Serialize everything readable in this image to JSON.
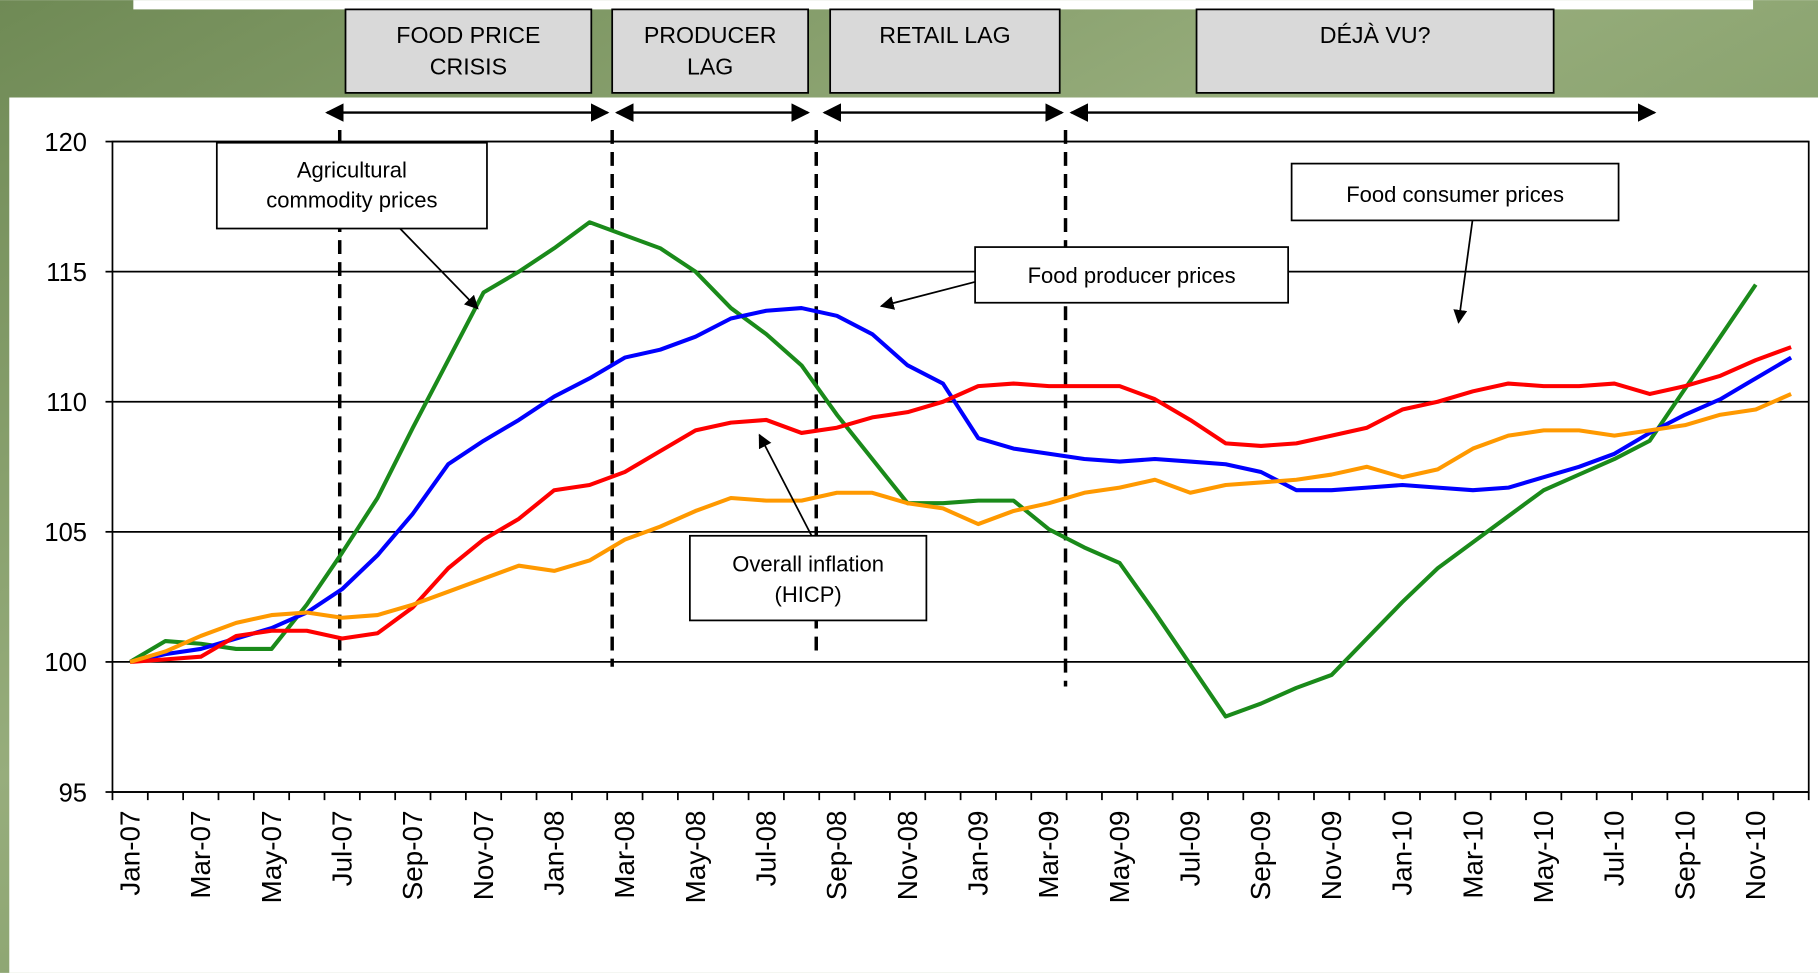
{
  "chart_data": {
    "type": "line",
    "categories": [
      "Jan-07",
      null,
      "Mar-07",
      null,
      "May-07",
      null,
      "Jul-07",
      null,
      "Sep-07",
      null,
      "Nov-07",
      null,
      "Jan-08",
      null,
      "Mar-08",
      null,
      "May-08",
      null,
      "Jul-08",
      null,
      "Sep-08",
      null,
      "Nov-08",
      null,
      "Jan-09",
      null,
      "Mar-09",
      null,
      "May-09",
      null,
      "Jul-09",
      null,
      "Sep-09",
      null,
      "Nov-09",
      null,
      "Jan-10",
      null,
      "Mar-10",
      null,
      "May-10",
      null,
      "Jul-10",
      null,
      "Sep-10",
      null,
      "Nov-10",
      null
    ],
    "series": [
      {
        "color": "#1a8a1a",
        "values": [
          100,
          100.8,
          100.7,
          100.5,
          100.5,
          102.2,
          104.2,
          106.3,
          109,
          111.6,
          114.2,
          115,
          115.9,
          116.9,
          116.4,
          115.9,
          115,
          113.6,
          112.6,
          111.4,
          109.5,
          107.8,
          106.1,
          106.1,
          106.2,
          106.2,
          105.1,
          104.4,
          103.8,
          101.9,
          99.9,
          97.9,
          98.4,
          99,
          99.5,
          100.9,
          102.3,
          103.6,
          104.6,
          105.6,
          106.6,
          107.2,
          107.8,
          108.5,
          110.5,
          112.5,
          114.5,
          null
        ]
      },
      {
        "color": "#0000ff",
        "values": [
          100,
          100.3,
          100.5,
          100.9,
          101.3,
          101.9,
          102.8,
          104.1,
          105.7,
          107.6,
          108.5,
          109.3,
          110.2,
          110.9,
          111.7,
          112,
          112.5,
          113.2,
          113.5,
          113.6,
          113.3,
          112.6,
          111.4,
          110.7,
          108.6,
          108.2,
          108,
          107.8,
          107.7,
          107.8,
          107.7,
          107.6,
          107.3,
          106.6,
          106.6,
          106.7,
          106.8,
          106.7,
          106.6,
          106.7,
          107.1,
          107.5,
          108,
          108.8,
          109.5,
          110.1,
          110.9,
          111.7
        ]
      },
      {
        "color": "#ff0000",
        "values": [
          100,
          100.1,
          100.2,
          101,
          101.2,
          101.2,
          100.9,
          101.1,
          102.1,
          103.6,
          104.7,
          105.5,
          106.6,
          106.8,
          107.3,
          108.1,
          108.9,
          109.2,
          109.3,
          108.8,
          109,
          109.4,
          109.6,
          110,
          110.6,
          110.7,
          110.6,
          110.6,
          110.6,
          110.1,
          109.3,
          108.4,
          108.3,
          108.4,
          108.7,
          109,
          109.7,
          110,
          110.4,
          110.7,
          110.6,
          110.6,
          110.7,
          110.3,
          110.6,
          111,
          111.6,
          112.1
        ]
      },
      {
        "color": "#ff9900",
        "values": [
          100,
          100.4,
          101,
          101.5,
          101.8,
          101.9,
          101.7,
          101.8,
          102.2,
          102.7,
          103.2,
          103.7,
          103.5,
          103.9,
          104.7,
          105.2,
          105.8,
          106.3,
          106.2,
          106.2,
          106.5,
          106.5,
          106.1,
          105.9,
          105.3,
          105.8,
          106.1,
          106.5,
          106.7,
          107,
          106.5,
          106.8,
          106.9,
          107,
          107.2,
          107.5,
          107.1,
          107.4,
          108.2,
          108.7,
          108.9,
          108.9,
          108.7,
          108.9,
          109.1,
          109.5,
          109.7,
          110.3
        ]
      }
    ],
    "ylim": [
      95,
      120
    ],
    "yticks": [
      95,
      100,
      105,
      110,
      115,
      120
    ],
    "grid": true,
    "annotations": {
      "periods": [
        [
          "FOOD PRICE",
          "CRISIS"
        ],
        [
          "PRODUCER",
          "LAG"
        ],
        [
          "RETAIL LAG"
        ],
        [
          "DÉJÀ VU?"
        ]
      ],
      "callouts": [
        [
          "Agricultural",
          "commodity prices"
        ],
        [
          "Food producer prices"
        ],
        [
          "Food consumer prices"
        ],
        [
          "Overall inflation",
          "(HICP)"
        ]
      ]
    }
  }
}
